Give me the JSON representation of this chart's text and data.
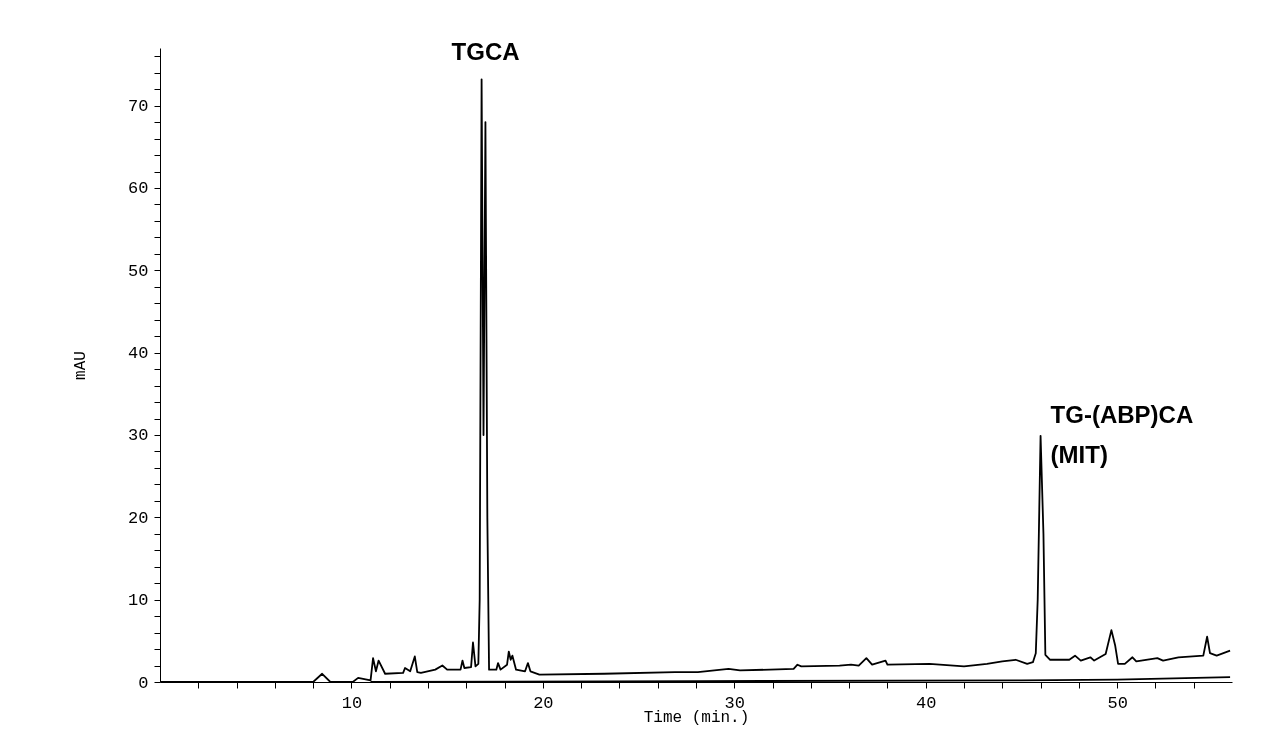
{
  "chart_data": {
    "type": "line",
    "xlabel": "Time (min.)",
    "ylabel": "mAU",
    "xlim": [
      0,
      56
    ],
    "ylim": [
      0,
      77
    ],
    "xticks": [
      {
        "value": 2,
        "label": null
      },
      {
        "value": 4,
        "label": null
      },
      {
        "value": 6,
        "label": null
      },
      {
        "value": 8,
        "label": null
      },
      10,
      {
        "value": 12,
        "label": null
      },
      {
        "value": 14,
        "label": null
      },
      {
        "value": 16,
        "label": null
      },
      {
        "value": 18,
        "label": null
      },
      20,
      {
        "value": 22,
        "label": null
      },
      {
        "value": 24,
        "label": null
      },
      {
        "value": 26,
        "label": null
      },
      {
        "value": 28,
        "label": null
      },
      30,
      {
        "value": 32,
        "label": null
      },
      {
        "value": 34,
        "label": null
      },
      {
        "value": 36,
        "label": null
      },
      {
        "value": 38,
        "label": null
      },
      40,
      {
        "value": 42,
        "label": null
      },
      {
        "value": 44,
        "label": null
      },
      {
        "value": 46,
        "label": null
      },
      {
        "value": 48,
        "label": null
      },
      50,
      {
        "value": 52,
        "label": null
      },
      {
        "value": 54,
        "label": null
      }
    ],
    "yticks": [
      0,
      {
        "value": 2,
        "label": null
      },
      {
        "value": 4,
        "label": null
      },
      {
        "value": 6,
        "label": null
      },
      {
        "value": 8,
        "label": null
      },
      10,
      {
        "value": 12,
        "label": null
      },
      {
        "value": 14,
        "label": null
      },
      {
        "value": 16,
        "label": null
      },
      {
        "value": 18,
        "label": null
      },
      20,
      {
        "value": 22,
        "label": null
      },
      {
        "value": 24,
        "label": null
      },
      {
        "value": 26,
        "label": null
      },
      {
        "value": 28,
        "label": null
      },
      30,
      {
        "value": 32,
        "label": null
      },
      {
        "value": 34,
        "label": null
      },
      {
        "value": 36,
        "label": null
      },
      {
        "value": 38,
        "label": null
      },
      40,
      {
        "value": 42,
        "label": null
      },
      {
        "value": 44,
        "label": null
      },
      {
        "value": 46,
        "label": null
      },
      {
        "value": 48,
        "label": null
      },
      50,
      {
        "value": 52,
        "label": null
      },
      {
        "value": 54,
        "label": null
      },
      {
        "value": 56,
        "label": null
      },
      {
        "value": 58,
        "label": null
      },
      60,
      {
        "value": 62,
        "label": null
      },
      {
        "value": 64,
        "label": null
      },
      {
        "value": 66,
        "label": null
      },
      {
        "value": 68,
        "label": null
      },
      70,
      {
        "value": 72,
        "label": null
      },
      {
        "value": 74,
        "label": null
      },
      {
        "value": 76,
        "label": null
      }
    ],
    "grid": false,
    "marker": "none",
    "line_style": "solid",
    "series": [
      {
        "color": "#000000",
        "x": [
          0,
          8.0,
          8.47,
          8.9,
          10.07,
          10.35,
          11.0,
          11.13,
          11.28,
          11.42,
          11.76,
          12.7,
          12.8,
          13.07,
          13.31,
          13.44,
          13.63,
          14.38,
          14.75,
          15.0,
          15.7,
          15.8,
          15.9,
          16.25,
          16.35,
          16.48,
          16.63,
          16.7,
          16.8,
          16.9,
          17.0,
          17.1,
          17.19,
          17.57,
          17.66,
          17.79,
          18.13,
          18.22,
          18.32,
          18.41,
          18.6,
          19.07,
          19.22,
          19.35,
          19.82,
          23.2,
          26.9,
          28.1,
          29.7,
          30.3,
          33.1,
          33.3,
          33.5,
          35.5,
          36.1,
          36.5,
          36.9,
          37.2,
          37.9,
          38.0,
          40.2,
          42.0,
          43.2,
          44.0,
          44.7,
          45.3,
          45.6,
          45.75,
          45.85,
          46.0,
          46.15,
          46.25,
          46.5,
          47.5,
          47.8,
          48.1,
          48.6,
          48.8,
          49.4,
          49.7,
          49.9,
          50.05,
          50.4,
          50.8,
          51.0,
          52.1,
          52.4,
          53.2,
          54.5,
          54.7,
          54.85,
          55.2,
          55.9
        ],
        "values": [
          0,
          0,
          1.0,
          0,
          0,
          0.5,
          0.2,
          2.9,
          1.3,
          2.6,
          1.0,
          1.1,
          1.7,
          1.3,
          3.1,
          1.2,
          1.1,
          1.5,
          2.0,
          1.5,
          1.5,
          2.6,
          1.7,
          1.8,
          4.8,
          1.9,
          2.2,
          10,
          73.2,
          30,
          68,
          20,
          1.5,
          1.5,
          2.3,
          1.5,
          2.1,
          3.7,
          2.7,
          3.2,
          1.5,
          1.3,
          2.3,
          1.3,
          0.9,
          1.0,
          1.2,
          1.2,
          1.6,
          1.4,
          1.6,
          2.1,
          1.9,
          2.0,
          2.1,
          2.0,
          2.9,
          2.1,
          2.6,
          2.1,
          2.2,
          1.9,
          2.2,
          2.5,
          2.7,
          2.2,
          2.4,
          3.5,
          10,
          29.9,
          18,
          3.3,
          2.7,
          2.7,
          3.2,
          2.6,
          3.0,
          2.6,
          3.4,
          6.3,
          4.4,
          2.2,
          2.2,
          3.0,
          2.5,
          2.9,
          2.6,
          3.0,
          3.2,
          5.5,
          3.5,
          3.2,
          3.8
        ]
      },
      {
        "color": "#000000",
        "x": [
          11,
          28.2,
          45,
          50,
          55.9
        ],
        "values": [
          0,
          0.1,
          0.2,
          0.3,
          0.6
        ]
      }
    ],
    "annotations": [
      {
        "text": "TGCA",
        "x": 16.8,
        "y": 73.2
      },
      {
        "text": "TG-(ABP)CA (MIT)",
        "x": 46.0,
        "y": 29.9
      }
    ]
  }
}
